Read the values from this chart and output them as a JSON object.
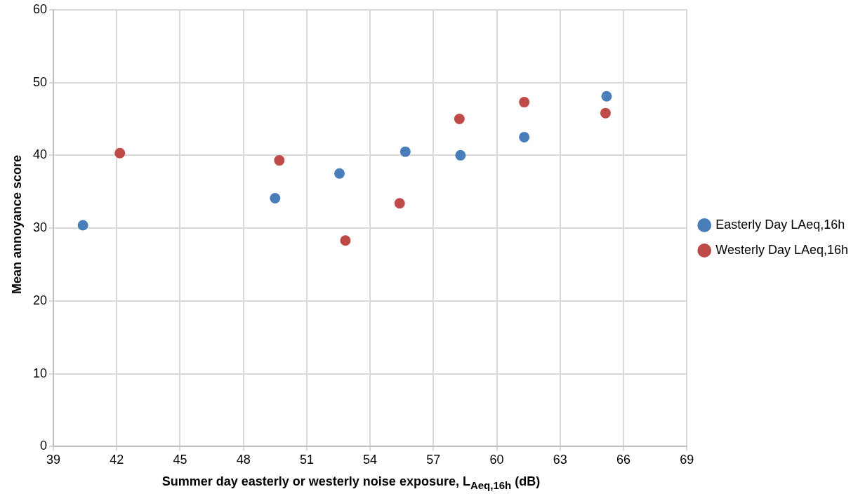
{
  "chart_data": {
    "type": "scatter",
    "xlabel": "Summer day easterly or westerly noise exposure, L$_{Aeq,16h}$ (dB)",
    "ylabel": "Mean annoyance score",
    "xlim": [
      39,
      69
    ],
    "xticks": [
      39,
      42,
      45,
      48,
      51,
      54,
      57,
      60,
      63,
      66,
      69
    ],
    "ylim": [
      0,
      60
    ],
    "yticks": [
      0,
      10,
      20,
      30,
      40,
      50,
      60
    ],
    "grid": true,
    "legend": "right",
    "marker": "circle",
    "series": [
      {
        "name": "Easterly Day LAeq,16h",
        "color": "#4a7ebb",
        "x": [
          40.4,
          49.5,
          52.55,
          55.67,
          58.28,
          61.3,
          65.2
        ],
        "values": [
          30.4,
          34.1,
          37.5,
          40.5,
          40,
          42.5,
          48.1
        ]
      },
      {
        "name": "Westerly Day LAeq,16h",
        "color": "#be4b48",
        "x": [
          42.15,
          49.7,
          52.83,
          55.4,
          58.23,
          61.3,
          65.15
        ],
        "values": [
          40.3,
          39.3,
          28.3,
          33.4,
          45,
          47.3,
          45.8
        ]
      }
    ]
  }
}
